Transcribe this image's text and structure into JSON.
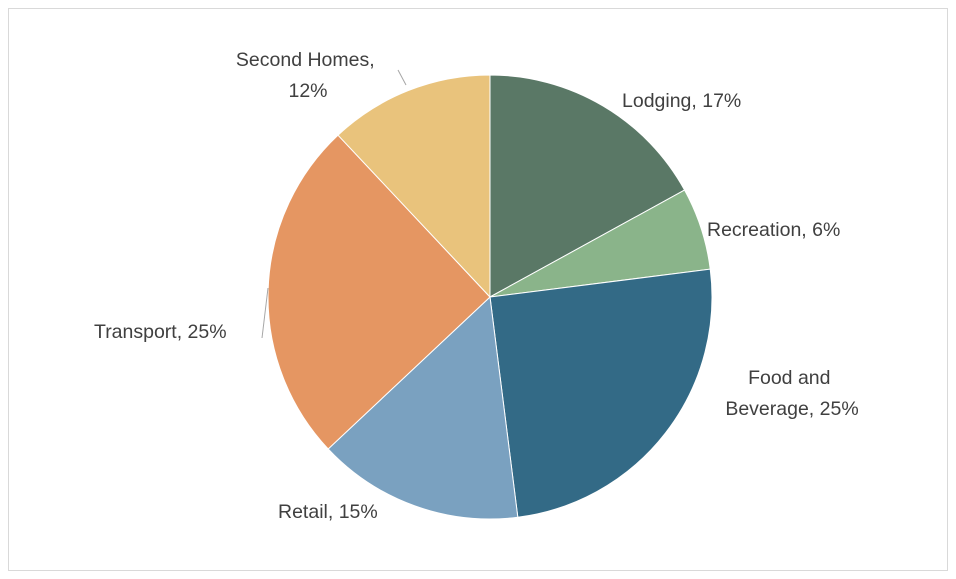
{
  "chart_data": {
    "type": "pie",
    "title": "",
    "slices": [
      {
        "label": "Lodging",
        "value": 17,
        "text": "Lodging, 17%",
        "color": "#5a7866"
      },
      {
        "label": "Recreation",
        "value": 6,
        "text": "Recreation, 6%",
        "color": "#8ab48a"
      },
      {
        "label": "Food and Beverage",
        "value": 25,
        "text": [
          "Food and",
          "Beverage, 25%"
        ],
        "color": "#336a86"
      },
      {
        "label": "Retail",
        "value": 15,
        "text": "Retail, 15%",
        "color": "#7aa1c0"
      },
      {
        "label": "Transport",
        "value": 25,
        "text": "Transport, 25%",
        "color": "#e59662"
      },
      {
        "label": "Second Homes",
        "value": 12,
        "text": [
          "Second Homes,",
          "12%"
        ],
        "color": "#e9c37c"
      }
    ]
  }
}
